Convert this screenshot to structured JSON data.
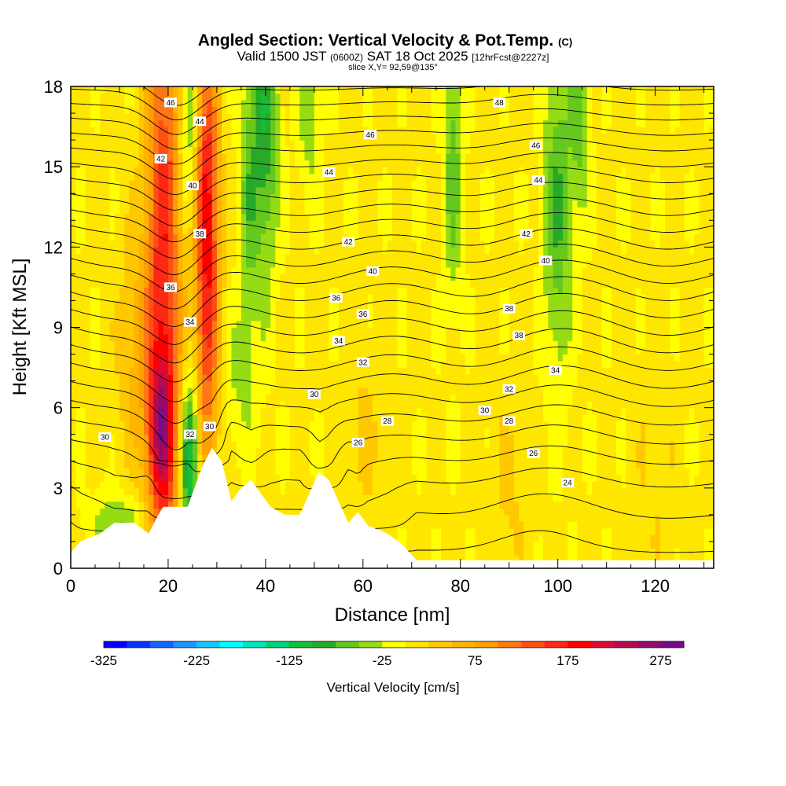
{
  "chart_data": {
    "type": "heatmap",
    "title": "Angled Section: Vertical Velocity & Pot.Temp.",
    "title_mark": "(C)",
    "subtitle_parts": [
      "Valid 1500 JST",
      "(0600Z)",
      "SAT 18 Oct 2025",
      "[12hrFcst@2227z]"
    ],
    "subtitle2": "slice X,Y= 92,59@135°",
    "xlabel": "Distance [nm]",
    "ylabel": "Height [Kft MSL]",
    "xlim": [
      0,
      132
    ],
    "ylim": [
      0,
      18
    ],
    "xticks": [
      0,
      20,
      40,
      60,
      80,
      100,
      120
    ],
    "yticks": [
      0,
      3,
      6,
      9,
      12,
      15,
      18
    ],
    "colorbar": {
      "label": "Vertical Velocity [cm/s]",
      "range": [
        -325,
        300
      ],
      "step": 25,
      "tick_labels": [
        -325,
        -225,
        -125,
        -25,
        75,
        175,
        275
      ],
      "colors": [
        "#0000ff",
        "#0a32ff",
        "#1464ff",
        "#1e96ff",
        "#14c8ff",
        "#00ffff",
        "#00e6be",
        "#00d278",
        "#14be3c",
        "#28aa28",
        "#64c81e",
        "#96dc14",
        "#ffff00",
        "#ffe600",
        "#ffc800",
        "#ffb400",
        "#ffa000",
        "#ff7814",
        "#ff5014",
        "#ff2814",
        "#ff0000",
        "#dc0a32",
        "#b40a50",
        "#960a6e",
        "#780a8c"
      ]
    },
    "terrain_kft": [
      [
        0,
        0.6
      ],
      [
        2,
        1
      ],
      [
        6,
        1.3
      ],
      [
        9,
        1.7
      ],
      [
        13,
        1.7
      ],
      [
        16,
        1.3
      ],
      [
        18,
        2.0
      ],
      [
        19,
        2.3
      ],
      [
        24,
        2.3
      ],
      [
        27,
        3.8
      ],
      [
        29,
        4.5
      ],
      [
        31,
        4.0
      ],
      [
        33,
        2.5
      ],
      [
        35,
        3.0
      ],
      [
        37,
        3.3
      ],
      [
        39,
        2.8
      ],
      [
        41,
        2.3
      ],
      [
        44,
        2.0
      ],
      [
        47,
        2.0
      ],
      [
        49,
        2.8
      ],
      [
        51,
        3.6
      ],
      [
        53,
        3.3
      ],
      [
        55,
        2.5
      ],
      [
        57,
        1.7
      ],
      [
        59,
        2.1
      ],
      [
        61,
        1.6
      ],
      [
        65,
        1.3
      ],
      [
        68,
        0.9
      ],
      [
        71,
        0.3
      ],
      [
        132,
        0.3
      ]
    ],
    "velocity_features": [
      {
        "x": 19.0,
        "y": 10.0,
        "sx": 2.6,
        "sy": 9.0,
        "v": 170
      },
      {
        "x": 18.5,
        "y": 5.2,
        "sx": 1.8,
        "sy": 1.8,
        "v": 120
      },
      {
        "x": 28.0,
        "y": 10.5,
        "sx": 1.8,
        "sy": 5.5,
        "v": 160
      },
      {
        "x": 24.5,
        "y": 4.0,
        "sx": 1.4,
        "sy": 2.2,
        "v": -150
      },
      {
        "x": 24.0,
        "y": 16.5,
        "sx": 1.4,
        "sy": 2.5,
        "v": -70
      },
      {
        "x": 40.0,
        "y": 16.5,
        "sx": 1.8,
        "sy": 4.0,
        "v": -100
      },
      {
        "x": 36.5,
        "y": 14.0,
        "sx": 1.4,
        "sy": 4.0,
        "v": -60
      },
      {
        "x": 49.0,
        "y": 17.0,
        "sx": 1.6,
        "sy": 2.0,
        "v": -50
      },
      {
        "x": 78.5,
        "y": 15.0,
        "sx": 1.4,
        "sy": 3.5,
        "v": -70
      },
      {
        "x": 100.0,
        "y": 13.5,
        "sx": 2.0,
        "sy": 4.5,
        "v": -80
      },
      {
        "x": 104.5,
        "y": 17.0,
        "sx": 1.4,
        "sy": 2.5,
        "v": -70
      },
      {
        "x": 10.0,
        "y": 1.7,
        "sx": 4.0,
        "sy": 0.8,
        "v": -60
      },
      {
        "x": 13.0,
        "y": 8.0,
        "sx": 2.5,
        "sy": 3.0,
        "v": 45
      },
      {
        "x": 28.0,
        "y": 15.5,
        "sx": 1.5,
        "sy": 3.0,
        "v": 60
      },
      {
        "x": 34.0,
        "y": 7.0,
        "sx": 3.0,
        "sy": 2.0,
        "v": -30
      },
      {
        "x": 60.0,
        "y": 5.0,
        "sx": 3.0,
        "sy": 2.5,
        "v": 25
      },
      {
        "x": 90.0,
        "y": 3.0,
        "sx": 3.0,
        "sy": 2.5,
        "v": 25
      },
      {
        "x": 120.0,
        "y": 3.5,
        "sx": 3.0,
        "sy": 3.0,
        "v": 20
      }
    ],
    "theta_contours_K": {
      "levels_spacing": 1,
      "labels": [
        {
          "text": "46",
          "x": 20.5,
          "y": 17.4
        },
        {
          "text": "44",
          "x": 26.5,
          "y": 16.7
        },
        {
          "text": "42",
          "x": 18.5,
          "y": 15.3
        },
        {
          "text": "40",
          "x": 25.0,
          "y": 14.3
        },
        {
          "text": "38",
          "x": 26.5,
          "y": 12.5
        },
        {
          "text": "36",
          "x": 20.5,
          "y": 10.5
        },
        {
          "text": "34",
          "x": 24.5,
          "y": 9.2
        },
        {
          "text": "32",
          "x": 24.5,
          "y": 5.0
        },
        {
          "text": "30",
          "x": 28.5,
          "y": 5.3
        },
        {
          "text": "30",
          "x": 7.0,
          "y": 4.9
        },
        {
          "text": "46",
          "x": 61.5,
          "y": 16.2
        },
        {
          "text": "44",
          "x": 53.0,
          "y": 14.8
        },
        {
          "text": "42",
          "x": 57.0,
          "y": 12.2
        },
        {
          "text": "40",
          "x": 62.0,
          "y": 11.1
        },
        {
          "text": "36",
          "x": 54.5,
          "y": 10.1
        },
        {
          "text": "36",
          "x": 60.0,
          "y": 9.5
        },
        {
          "text": "34",
          "x": 55.0,
          "y": 8.5
        },
        {
          "text": "32",
          "x": 60.0,
          "y": 7.7
        },
        {
          "text": "30",
          "x": 50.0,
          "y": 6.5
        },
        {
          "text": "28",
          "x": 65.0,
          "y": 5.5
        },
        {
          "text": "26",
          "x": 59.0,
          "y": 4.7
        },
        {
          "text": "48",
          "x": 88.0,
          "y": 17.4
        },
        {
          "text": "46",
          "x": 95.5,
          "y": 15.8
        },
        {
          "text": "44",
          "x": 96.0,
          "y": 14.5
        },
        {
          "text": "42",
          "x": 93.5,
          "y": 12.5
        },
        {
          "text": "40",
          "x": 97.5,
          "y": 11.5
        },
        {
          "text": "38",
          "x": 90.0,
          "y": 9.7
        },
        {
          "text": "38",
          "x": 92.0,
          "y": 8.7
        },
        {
          "text": "34",
          "x": 99.5,
          "y": 7.4
        },
        {
          "text": "32",
          "x": 90.0,
          "y": 6.7
        },
        {
          "text": "30",
          "x": 85.0,
          "y": 5.9
        },
        {
          "text": "28",
          "x": 90.0,
          "y": 5.5
        },
        {
          "text": "26",
          "x": 95.0,
          "y": 4.3
        },
        {
          "text": "24",
          "x": 102.0,
          "y": 3.2
        }
      ]
    }
  }
}
